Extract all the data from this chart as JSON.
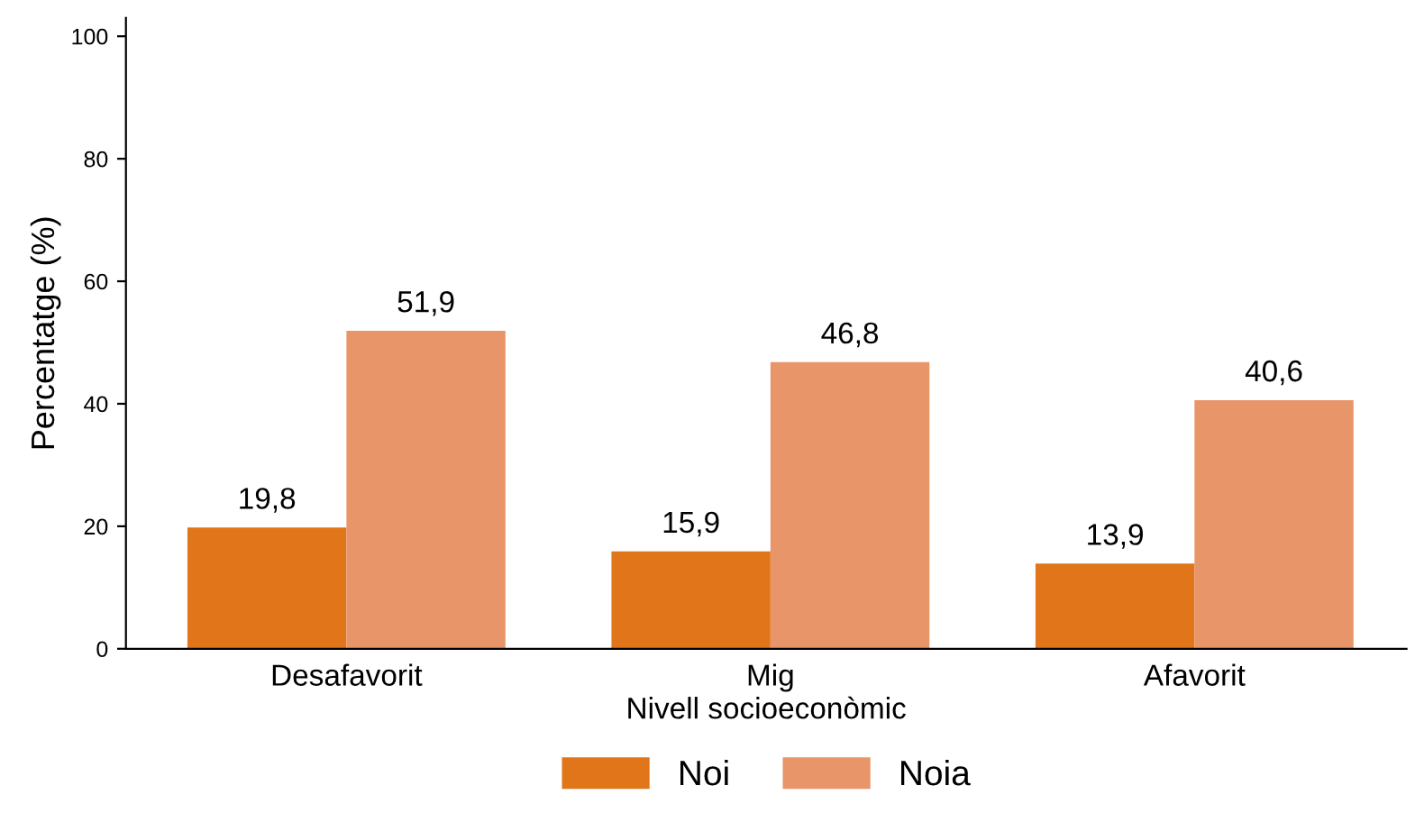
{
  "chart_data": {
    "type": "bar",
    "xlabel": "Nivell socioeconòmic",
    "ylabel": "Percentatge (%)",
    "categories": [
      "Desafavorit",
      "Mig",
      "Afavorit"
    ],
    "series": [
      {
        "name": "Noi",
        "color": "#e07519",
        "values": [
          19.8,
          15.9,
          13.9
        ],
        "value_labels": [
          "19,8",
          "15,9",
          "13,9"
        ]
      },
      {
        "name": "Noia",
        "color": "#e8956a",
        "values": [
          51.9,
          46.8,
          40.6
        ],
        "value_labels": [
          "51,9",
          "46,8",
          "40,6"
        ]
      }
    ],
    "ylim": [
      0,
      103
    ],
    "yticks": [
      0,
      20,
      40,
      60,
      80,
      100
    ],
    "grid": false,
    "legend": "bottom"
  }
}
